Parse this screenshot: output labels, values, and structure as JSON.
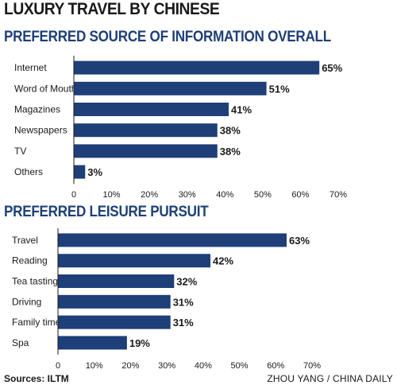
{
  "title": "LUXURY TRAVEL BY CHINESE",
  "source": "Sources: ILTM",
  "credit": "ZHOU YANG / CHINA DAILY",
  "colors": {
    "bar": "#1e3f78",
    "subtitle": "#1e3f78"
  },
  "chart_data": [
    {
      "type": "bar",
      "orientation": "horizontal",
      "title": "PREFERRED SOURCE OF INFORMATION OVERALL",
      "categories": [
        "Internet",
        "Word of Mouth",
        "Magazines",
        "Newspapers",
        "TV",
        "Others"
      ],
      "values": [
        65,
        51,
        41,
        38,
        38,
        3
      ],
      "value_labels": [
        "65%",
        "51%",
        "41%",
        "38%",
        "38%",
        "3%"
      ],
      "xlim": [
        0,
        70
      ],
      "ticks": [
        "0",
        "10%",
        "20%",
        "30%",
        "40%",
        "50%",
        "60%",
        "70%"
      ],
      "grid": false
    },
    {
      "type": "bar",
      "orientation": "horizontal",
      "title": "PREFERRED LEISURE PURSUIT",
      "categories": [
        "Travel",
        "Reading",
        "Tea tasting",
        "Driving",
        "Family time",
        "Spa"
      ],
      "values": [
        63,
        42,
        32,
        31,
        31,
        19
      ],
      "value_labels": [
        "63%",
        "42%",
        "32%",
        "31%",
        "31%",
        "19%"
      ],
      "xlim": [
        0,
        70
      ],
      "ticks": [
        "0",
        "10%",
        "20%",
        "30%",
        "40%",
        "50%",
        "60%",
        "70%"
      ],
      "grid": false
    }
  ]
}
